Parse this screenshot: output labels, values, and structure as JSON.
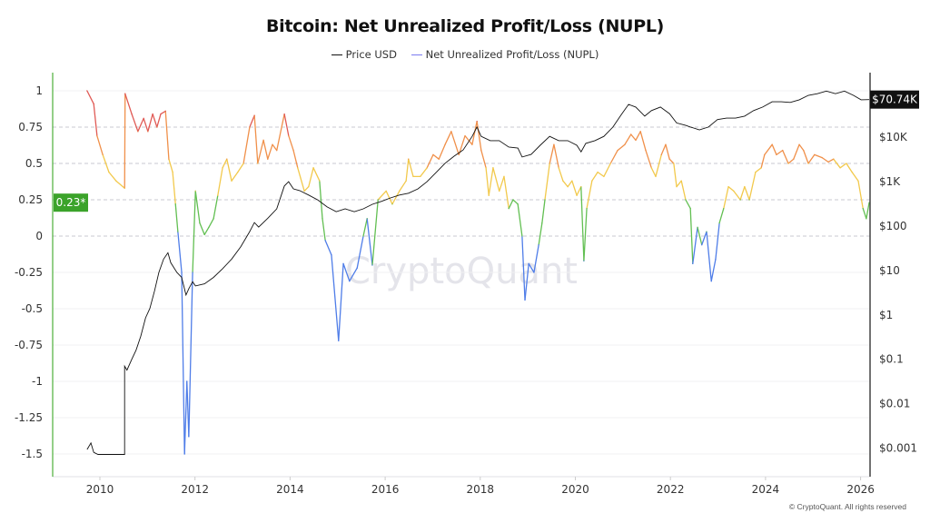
{
  "chart_data": {
    "type": "line",
    "title": "Bitcoin: Net Unrealized Profit/Loss (NUPL)",
    "legend_position": "top",
    "grid": true,
    "x_axis": {
      "type": "date",
      "range": [
        2009.0,
        2026.2
      ],
      "tick_labels": [
        "2010",
        "2012",
        "2014",
        "2016",
        "2018",
        "2020",
        "2022",
        "2024",
        "2026"
      ]
    },
    "y_left": {
      "range": [
        -1.6,
        1.1
      ],
      "tick_labels": [
        "1",
        "0.75",
        "0.5",
        "0.25",
        "0",
        "-0.25",
        "-0.5",
        "-0.75",
        "-1",
        "-1.25",
        "-1.5"
      ],
      "dashed_levels": [
        0.75,
        0.5,
        0.25,
        0
      ]
    },
    "y_right": {
      "scale": "log",
      "tick_labels": [
        "$10K",
        "$1K",
        "$100",
        "$10",
        "$1",
        "$0.1",
        "$0.01",
        "$0.001"
      ]
    },
    "current_labels": {
      "nupl": "0.23*",
      "price": "$70.74K"
    },
    "zone_colors": {
      "above_0.75": "#e05a55",
      "0.5_to_0.75": "#f0904a",
      "0.25_to_0.5": "#f2c94c",
      "0_to_0.25": "#62bf52",
      "below_0": "#4f7de8"
    },
    "series": [
      {
        "name": "Price USD",
        "color": "#111111",
        "axis": "right",
        "x": [
          2009.73,
          2009.81,
          2009.87,
          2009.96,
          2010.52,
          2010.52,
          2010.57,
          2010.67,
          2010.76,
          2010.86,
          2010.96,
          2011.05,
          2011.15,
          2011.24,
          2011.34,
          2011.43,
          2011.49,
          2011.62,
          2011.72,
          2011.81,
          2011.87,
          2011.95,
          2012.01,
          2012.2,
          2012.39,
          2012.58,
          2012.77,
          2012.96,
          2013.15,
          2013.25,
          2013.34,
          2013.53,
          2013.72,
          2013.88,
          2013.97,
          2014.07,
          2014.2,
          2014.39,
          2014.58,
          2014.78,
          2014.97,
          2015.16,
          2015.35,
          2015.54,
          2015.73,
          2015.92,
          2016.11,
          2016.3,
          2016.49,
          2016.69,
          2016.88,
          2017.07,
          2017.26,
          2017.45,
          2017.64,
          2017.83,
          2017.93,
          2018.02,
          2018.21,
          2018.4,
          2018.6,
          2018.79,
          2018.88,
          2019.07,
          2019.26,
          2019.46,
          2019.65,
          2019.84,
          2020.03,
          2020.12,
          2020.22,
          2020.41,
          2020.6,
          2020.79,
          2020.98,
          2021.12,
          2021.27,
          2021.46,
          2021.6,
          2021.79,
          2021.98,
          2022.13,
          2022.32,
          2022.42,
          2022.61,
          2022.8,
          2022.99,
          2023.18,
          2023.37,
          2023.56,
          2023.75,
          2023.94,
          2024.14,
          2024.33,
          2024.52,
          2024.71,
          2024.9,
          2025.09,
          2025.28,
          2025.47,
          2025.66,
          2025.85,
          2026.01,
          2026.18
        ],
        "values": [
          0.00093,
          0.0013,
          0.0008,
          0.00072,
          0.00072,
          0.07,
          0.057,
          0.1,
          0.16,
          0.33,
          0.86,
          1.4,
          3.5,
          9,
          18,
          25,
          15,
          9,
          7,
          2.8,
          3.9,
          5.6,
          4.5,
          5,
          7,
          11,
          18,
          34,
          75,
          120,
          95,
          150,
          245,
          800,
          1000,
          690,
          630,
          500,
          390,
          270,
          210,
          245,
          210,
          245,
          310,
          360,
          430,
          500,
          550,
          690,
          1000,
          1600,
          2600,
          3750,
          5200,
          10500,
          17000,
          10500,
          8400,
          8400,
          6000,
          5700,
          3600,
          4100,
          6600,
          10500,
          8400,
          8400,
          6600,
          4700,
          7300,
          8400,
          10500,
          17000,
          34000,
          55000,
          48000,
          30000,
          40000,
          48000,
          34000,
          21000,
          18500,
          17000,
          14700,
          17000,
          25000,
          27000,
          27000,
          30000,
          40000,
          48000,
          63000,
          63000,
          61000,
          70000,
          88000,
          96000,
          110000,
          96000,
          110000,
          88000,
          70000,
          70740
        ]
      },
      {
        "name": "Net Unrealized Profit/Loss (NUPL)",
        "color": "#7b7bf0",
        "axis": "left",
        "x": [
          2009.73,
          2009.87,
          2009.94,
          2010.06,
          2010.19,
          2010.34,
          2010.52,
          2010.53,
          2010.67,
          2010.8,
          2010.92,
          2011.01,
          2011.11,
          2011.2,
          2011.28,
          2011.38,
          2011.45,
          2011.53,
          2011.59,
          2011.64,
          2011.72,
          2011.78,
          2011.83,
          2011.87,
          2011.95,
          2012.01,
          2012.1,
          2012.2,
          2012.29,
          2012.39,
          2012.48,
          2012.58,
          2012.67,
          2012.77,
          2012.9,
          2013.02,
          2013.15,
          2013.25,
          2013.32,
          2013.44,
          2013.53,
          2013.63,
          2013.72,
          2013.88,
          2013.97,
          2014.07,
          2014.16,
          2014.3,
          2014.39,
          2014.49,
          2014.62,
          2014.68,
          2014.74,
          2014.87,
          2015.02,
          2015.12,
          2015.25,
          2015.41,
          2015.54,
          2015.62,
          2015.73,
          2015.85,
          2016.02,
          2016.15,
          2016.3,
          2016.44,
          2016.49,
          2016.59,
          2016.74,
          2016.88,
          2017.01,
          2017.13,
          2017.26,
          2017.39,
          2017.55,
          2017.68,
          2017.83,
          2017.93,
          2018.02,
          2018.12,
          2018.18,
          2018.27,
          2018.4,
          2018.5,
          2018.6,
          2018.69,
          2018.79,
          2018.88,
          2018.94,
          2019.02,
          2019.13,
          2019.23,
          2019.3,
          2019.36,
          2019.46,
          2019.55,
          2019.65,
          2019.74,
          2019.84,
          2019.93,
          2020.03,
          2020.12,
          2020.18,
          2020.24,
          2020.35,
          2020.47,
          2020.6,
          2020.74,
          2020.89,
          2021.04,
          2021.17,
          2021.27,
          2021.37,
          2021.48,
          2021.6,
          2021.69,
          2021.81,
          2021.9,
          2021.98,
          2022.07,
          2022.13,
          2022.23,
          2022.32,
          2022.42,
          2022.47,
          2022.57,
          2022.66,
          2022.76,
          2022.86,
          2022.95,
          2023.03,
          2023.12,
          2023.22,
          2023.33,
          2023.47,
          2023.56,
          2023.66,
          2023.79,
          2023.91,
          2023.98,
          2024.14,
          2024.23,
          2024.36,
          2024.48,
          2024.59,
          2024.71,
          2024.8,
          2024.9,
          2025.03,
          2025.19,
          2025.32,
          2025.43,
          2025.57,
          2025.7,
          2025.82,
          2025.95,
          2026.05,
          2026.12,
          2026.18
        ],
        "values": [
          1.0,
          0.91,
          0.69,
          0.56,
          0.44,
          0.38,
          0.33,
          0.98,
          0.84,
          0.72,
          0.81,
          0.72,
          0.84,
          0.75,
          0.84,
          0.86,
          0.53,
          0.44,
          0.22,
          0.03,
          -0.25,
          -1.5,
          -1.0,
          -1.38,
          -0.25,
          0.31,
          0.09,
          0.01,
          0.06,
          0.12,
          0.28,
          0.47,
          0.53,
          0.38,
          0.44,
          0.5,
          0.75,
          0.83,
          0.5,
          0.66,
          0.53,
          0.63,
          0.59,
          0.84,
          0.69,
          0.59,
          0.47,
          0.31,
          0.34,
          0.47,
          0.38,
          0.12,
          -0.03,
          -0.13,
          -0.72,
          -0.19,
          -0.31,
          -0.22,
          0.0,
          0.12,
          -0.2,
          0.25,
          0.31,
          0.22,
          0.31,
          0.38,
          0.53,
          0.41,
          0.41,
          0.47,
          0.56,
          0.53,
          0.63,
          0.72,
          0.56,
          0.69,
          0.63,
          0.79,
          0.59,
          0.47,
          0.28,
          0.47,
          0.31,
          0.41,
          0.19,
          0.25,
          0.22,
          0.0,
          -0.44,
          -0.19,
          -0.25,
          -0.06,
          0.09,
          0.25,
          0.5,
          0.63,
          0.47,
          0.38,
          0.34,
          0.38,
          0.28,
          0.34,
          -0.17,
          0.19,
          0.38,
          0.44,
          0.41,
          0.5,
          0.59,
          0.63,
          0.7,
          0.66,
          0.72,
          0.59,
          0.47,
          0.41,
          0.56,
          0.63,
          0.53,
          0.5,
          0.34,
          0.38,
          0.25,
          0.19,
          -0.19,
          0.06,
          -0.06,
          0.03,
          -0.31,
          -0.16,
          0.09,
          0.19,
          0.34,
          0.31,
          0.25,
          0.34,
          0.25,
          0.44,
          0.47,
          0.56,
          0.63,
          0.56,
          0.59,
          0.5,
          0.53,
          0.63,
          0.59,
          0.5,
          0.56,
          0.54,
          0.51,
          0.53,
          0.47,
          0.5,
          0.44,
          0.38,
          0.19,
          0.12,
          0.23
        ]
      }
    ]
  },
  "watermark": "CryptoQuant",
  "copyright": "© CryptoQuant. All rights reserved"
}
